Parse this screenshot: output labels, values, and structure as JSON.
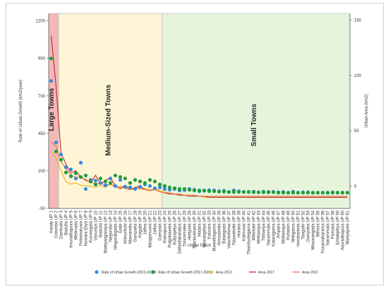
{
  "chart_data": {
    "type": "scatter",
    "xlabel": "Urban Patch",
    "ylabel_left": "Rate of Urban Growth (km2/year)",
    "ylabel_right": "Urban Area (km2)",
    "yticks_left": [
      "-50",
      "200",
      "450",
      "700",
      "950",
      "1200"
    ],
    "yticks_right": [
      "0",
      "50",
      "100",
      "150"
    ],
    "ylim_left": [
      -50,
      1250
    ],
    "ylim_right": [
      -20,
      156
    ],
    "regions": [
      {
        "label": "Large Towns",
        "from": "Kandy UP 1",
        "to": "UP 2",
        "color": "#f4b8b8"
      },
      {
        "label": "Medium-Sized Towns",
        "from": "UP 3",
        "to": "UP 23",
        "color": "#fdf5d6"
      },
      {
        "label": "Small Towns",
        "from": "UP 24",
        "to": "UP 61",
        "color": "#e6f4dc"
      }
    ],
    "categories": [
      "Kandy UP 1",
      "Colombo UP 2",
      "Dambulla UP 3",
      "Badulla UP 4",
      "Anuradhapura UP 5",
      "Welimada UP 6",
      "Polonnaruwa UP 7",
      "Nuwara Eliya UP 8",
      "Kurunegala UP 9",
      "Vavuniya UP 10",
      "Badulla UP 11",
      "Mahiyanganaya UP 12",
      "Negombo UP 13",
      "Hingurakgoda UP 14",
      "Galle UP 15",
      "Kilinochchi UP 16",
      "Mawanella UP 17",
      "Gampaha UP 18",
      "Kegalle UP 19",
      "Jaffna UP 20",
      "Ibbagamuwa UP 21",
      "Jaffna UP 22",
      "Gampola UP 23",
      "Ratnapura UP 24",
      "Polgahawela UP 25",
      "Kuliyapitiya UP 26",
      "Dehiattakandiya UP 27",
      "Trincomalee UP 28",
      "Hettipola UP 29",
      "Rambukkana UP 30",
      "Matara UP 31",
      "Nawalapitiya UP 32",
      "Kalutara UP 33",
      "Mawathagama UP 34",
      "Avissawella UP 35",
      "Balangoda UP 36",
      "Valachchenai UP 37",
      "Talawakelle UP 38",
      "Horana UP 39",
      "Kalmunai UP 40",
      "Thambuttegama UP 41",
      "Mihintale UP 42",
      "Wellawaya UP 43",
      "Thihariya UP 44",
      "Narammala UP 45",
      "Kataragama UP 46",
      "Ampara UP 47",
      "Wellawaya UP 48",
      "Puttalam UP 49",
      "Weligama UP 50",
      "Hambantota UP 51",
      "Tangalle UP 52",
      "Gampaha UP 53",
      "Minuwangoda UP 54",
      "Mirissa UP 55",
      "Tissamaharama UP 56",
      "Narammala UP 57",
      "Passara UP 58",
      "Embilipitiya UP 59",
      "Anuradhapura UP 60",
      "Wariyapola UP 61"
    ],
    "series": [
      {
        "name": "Rate of Urban Growth (2013-2017)",
        "kind": "scatter",
        "axis": "left",
        "color": "#3a86e0",
        "values": [
          800,
          390,
          310,
          225,
          210,
          150,
          255,
          80,
          140,
          135,
          120,
          105,
          150,
          100,
          140,
          95,
          90,
          80,
          95,
          110,
          100,
          85,
          90,
          80,
          75,
          80,
          70,
          72,
          80,
          75,
          65,
          70,
          72,
          70,
          65,
          68,
          60,
          70,
          65,
          60,
          60,
          62,
          58,
          62,
          60,
          60,
          58,
          60,
          55,
          62,
          55,
          58,
          58,
          55,
          55,
          55,
          55,
          58,
          55,
          55,
          55
        ]
      },
      {
        "name": "Rate of Urban Growth (2017-2021)",
        "kind": "scatter",
        "axis": "left",
        "color": "#1f9e3a",
        "values": [
          950,
          330,
          275,
          190,
          165,
          185,
          160,
          170,
          130,
          110,
          150,
          130,
          120,
          170,
          160,
          150,
          120,
          140,
          130,
          120,
          140,
          130,
          110,
          100,
          90,
          85,
          80,
          80,
          75,
          70,
          70,
          68,
          65,
          65,
          62,
          62,
          60,
          60,
          60,
          60,
          60,
          58,
          58,
          58,
          58,
          58,
          55,
          55,
          55,
          55,
          55,
          55,
          55,
          55,
          55,
          55,
          55,
          55,
          55,
          55,
          55
        ]
      },
      {
        "name": "Area 2013",
        "kind": "line",
        "axis": "right",
        "color": "#f2b01e",
        "values": [
          32,
          25,
          14,
          4,
          2,
          3,
          1,
          0.5,
          0,
          -1,
          1,
          -1,
          2,
          0,
          -2,
          -1,
          -3,
          -2,
          -1,
          -2,
          -3,
          -2,
          -4,
          -5,
          -6,
          -7,
          -8,
          -8,
          -9,
          -9,
          -9,
          -10,
          -10,
          -10,
          -10,
          -10,
          -10,
          -10,
          -10,
          -10,
          -10,
          -10,
          -10,
          -10,
          -10,
          -10,
          -10,
          -10,
          -10,
          -10,
          -10,
          -10,
          -10,
          -10,
          -10,
          -10,
          -10,
          -10,
          -10,
          -10,
          -10
        ]
      },
      {
        "name": "Area 2017",
        "kind": "line",
        "axis": "right",
        "color": "#c62828",
        "values": [
          136,
          90,
          30,
          20,
          12,
          14,
          8,
          6,
          3,
          10,
          2,
          5,
          8,
          0,
          -2,
          1,
          -3,
          -1,
          0,
          -3,
          -4,
          -3,
          -5,
          -6,
          -7,
          -7,
          -8,
          -8,
          -9,
          -9,
          -9,
          -9,
          -10,
          -10,
          -10,
          -10,
          -10,
          -10,
          -10,
          -10,
          -10,
          -10,
          -10,
          -10,
          -10,
          -10,
          -10,
          -10,
          -10,
          -10,
          -10,
          -10,
          -10,
          -10,
          -10,
          -10,
          -10,
          -10,
          -10,
          -10,
          -10
        ]
      },
      {
        "name": "Area 2021",
        "kind": "line",
        "axis": "right",
        "color": "#e8734a",
        "values": [
          40,
          36,
          22,
          16,
          10,
          8,
          9,
          5,
          4,
          2,
          3,
          1,
          2,
          -1,
          0,
          -2,
          -3,
          -2,
          -2,
          -3,
          -4,
          -3,
          -5,
          -6,
          -6,
          -7,
          -7,
          -8,
          -8,
          -8,
          -9,
          -9,
          -9,
          -9,
          -9,
          -9,
          -9,
          -9,
          -9,
          -9,
          -9,
          -9,
          -9,
          -9,
          -9,
          -9,
          -9,
          -9,
          -9,
          -9,
          -9,
          -9,
          -9,
          -9,
          -9,
          -9,
          -9,
          -9,
          -9,
          -9,
          -9
        ]
      }
    ]
  }
}
